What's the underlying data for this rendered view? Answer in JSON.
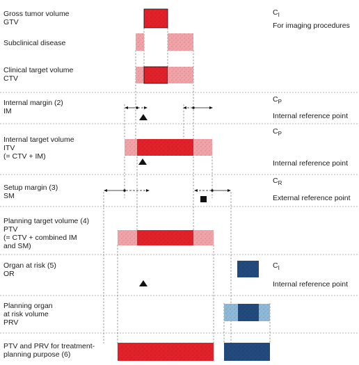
{
  "rows": [
    {
      "id": "gtv",
      "lines": [
        "Gross tumor volume",
        "GTV"
      ],
      "coord": "C",
      "sub": "I",
      "coord_text": "For imaging procedures"
    },
    {
      "id": "subclinical",
      "lines": [
        "Subclinical disease"
      ]
    },
    {
      "id": "ctv",
      "lines": [
        "Clinical target volume",
        "CTV"
      ]
    },
    {
      "id": "im",
      "lines": [
        "Internal margin (2)",
        "IM"
      ],
      "coord": "C",
      "sub": "P",
      "coord_text": "Internal reference point"
    },
    {
      "id": "itv",
      "lines": [
        "Internal  target volume",
        "ITV",
        "(= CTV + IM)"
      ],
      "coord": "C",
      "sub": "P",
      "coord_text": "Internal reference point"
    },
    {
      "id": "sm",
      "lines": [
        "Setup margin (3)",
        "SM"
      ],
      "coord": "C",
      "sub": "R",
      "coord_text": "External reference point"
    },
    {
      "id": "ptv",
      "lines": [
        "Planning target volume (4)",
        "PTV",
        "(= CTV + combined IM",
        "and SM)"
      ]
    },
    {
      "id": "or",
      "lines": [
        "Organ at risk (5)",
        "OR"
      ],
      "coord": "C",
      "sub": "I",
      "coord_text": "Internal reference point"
    },
    {
      "id": "prv",
      "lines": [
        "Planning organ",
        "at risk volume",
        "PRV"
      ]
    },
    {
      "id": "final",
      "lines": [
        "PTV and PRV for treatment-",
        "planning purpose (6)"
      ]
    }
  ],
  "colors": {
    "red": "#e2222a",
    "pink": "#f2a3a8",
    "navy": "#234a7c",
    "light_blue": "#8fb9d6"
  },
  "icons": {
    "internal_reference": "triangle-icon",
    "external_reference": "square-icon"
  }
}
